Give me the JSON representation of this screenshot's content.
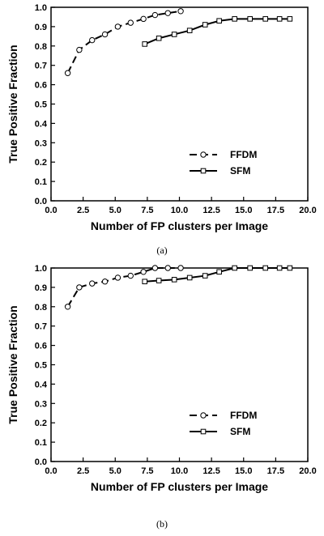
{
  "chart_data": [
    {
      "type": "line",
      "caption": "(a)",
      "xlabel": "Number of FP clusters per Image",
      "ylabel": "True Positive Fraction",
      "xlim": [
        0,
        20
      ],
      "ylim": [
        0,
        1
      ],
      "x_ticks": [
        "0.0",
        "2.5",
        "5.0",
        "7.5",
        "10.0",
        "12.5",
        "15.0",
        "17.5",
        "20.0"
      ],
      "y_ticks": [
        "0.0",
        "0.1",
        "0.2",
        "0.3",
        "0.4",
        "0.5",
        "0.6",
        "0.7",
        "0.8",
        "0.9",
        "1.0"
      ],
      "grid": false,
      "legend_position": "bottom-right",
      "series": [
        {
          "name": "FFDM",
          "style": "dashed",
          "marker": "circle",
          "color": "#000000",
          "x": [
            1.3,
            2.2,
            3.2,
            4.2,
            5.2,
            6.2,
            7.2,
            8.1,
            9.1,
            10.1
          ],
          "y": [
            0.66,
            0.78,
            0.83,
            0.86,
            0.9,
            0.92,
            0.94,
            0.96,
            0.97,
            0.98
          ]
        },
        {
          "name": "SFM",
          "style": "solid",
          "marker": "square",
          "color": "#000000",
          "x": [
            7.3,
            8.4,
            9.6,
            10.8,
            12.0,
            13.1,
            14.3,
            15.5,
            16.7,
            17.8,
            18.6
          ],
          "y": [
            0.81,
            0.84,
            0.86,
            0.88,
            0.91,
            0.93,
            0.94,
            0.94,
            0.94,
            0.94,
            0.94
          ]
        }
      ]
    },
    {
      "type": "line",
      "caption": "(b)",
      "xlabel": "Number of FP clusters per Image",
      "ylabel": "True Positive Fraction",
      "xlim": [
        0,
        20
      ],
      "ylim": [
        0,
        1
      ],
      "x_ticks": [
        "0.0",
        "2.5",
        "5.0",
        "7.5",
        "10.0",
        "12.5",
        "15.0",
        "17.5",
        "20.0"
      ],
      "y_ticks": [
        "0.0",
        "0.1",
        "0.2",
        "0.3",
        "0.4",
        "0.5",
        "0.6",
        "0.7",
        "0.8",
        "0.9",
        "1.0"
      ],
      "grid": false,
      "legend_position": "bottom-right",
      "series": [
        {
          "name": "FFDM",
          "style": "dashed",
          "marker": "circle",
          "color": "#000000",
          "x": [
            1.3,
            2.2,
            3.2,
            4.2,
            5.2,
            6.2,
            7.2,
            8.1,
            9.1,
            10.1
          ],
          "y": [
            0.8,
            0.9,
            0.92,
            0.93,
            0.95,
            0.96,
            0.98,
            1.0,
            1.0,
            1.0
          ]
        },
        {
          "name": "SFM",
          "style": "solid",
          "marker": "square",
          "color": "#000000",
          "x": [
            7.3,
            8.4,
            9.6,
            10.8,
            12.0,
            13.1,
            14.3,
            15.5,
            16.7,
            17.8,
            18.6
          ],
          "y": [
            0.93,
            0.935,
            0.94,
            0.95,
            0.96,
            0.98,
            1.0,
            1.0,
            1.0,
            1.0,
            1.0
          ]
        }
      ]
    }
  ]
}
